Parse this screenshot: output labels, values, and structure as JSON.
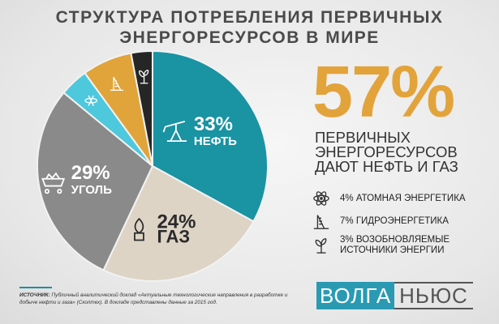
{
  "title_line1": "СТРУКТУРА ПОТРЕБЛЕНИЯ ПЕРВИЧНЫХ",
  "title_line2": "ЭНЕРГОРЕСУРСОВ В МИРЕ",
  "headline_value": "57%",
  "headline_text": [
    "ПЕРВИЧНЫХ",
    "ЭНЕРГОРЕСУРСОВ",
    "ДАЮТ НЕФТЬ И ГАЗ"
  ],
  "legend": [
    {
      "icon": "atom-icon",
      "text": "4% АТОМНАЯ ЭНЕРГЕТИКА"
    },
    {
      "icon": "hydro-dam-icon",
      "text": "7% ГИДРОЭНЕРГЕТИКА"
    },
    {
      "icon": "renewable-plant-icon",
      "line1": "3% ВОЗОБНОВЛЯЕМЫЕ",
      "line2": "ИСТОЧНИКИ ЭНЕРГИИ"
    }
  ],
  "source_label": "ИСТОЧНИК:",
  "source_text": "Публичный аналитический доклад «Актуальные технологические направления в разработке и добыче нефти и газа» (Сколтех). В докладе представлены данные за 2015 год.",
  "logo": {
    "part1": "ВОЛГА",
    "part2": "НЬЮС"
  },
  "colors": {
    "oil": "#1a93a3",
    "gas": "#ddd4c6",
    "coal": "#8a8a8a",
    "nuclear": "#4ec8dc",
    "hydro": "#e0a43a",
    "renewable": "#262626",
    "accent": "#e3a33b"
  },
  "chart_data": {
    "type": "pie",
    "categories": [
      "НЕФТЬ",
      "ГАЗ",
      "УГОЛЬ",
      "АТОМНАЯ ЭНЕРГЕТИКА",
      "ГИДРОЭНЕРГЕТИКА",
      "ВОЗОБНОВЛЯЕМЫЕ ИСТОЧНИКИ ЭНЕРГИИ"
    ],
    "values": [
      33,
      24,
      29,
      4,
      7,
      3
    ],
    "labels": [
      {
        "pct": "33%",
        "name": "НЕФТЬ",
        "icon": "oil-pump-icon"
      },
      {
        "pct": "24%",
        "name": "ГАЗ",
        "icon": "gas-flame-icon"
      },
      {
        "pct": "29%",
        "name": "УГОЛЬ",
        "icon": "coal-cart-icon"
      },
      {
        "pct": "",
        "name": "",
        "icon": "atom-icon"
      },
      {
        "pct": "",
        "name": "",
        "icon": "hydro-dam-icon"
      },
      {
        "pct": "",
        "name": "",
        "icon": "renewable-plant-icon"
      }
    ],
    "colors": [
      "#1a93a3",
      "#ddd4c6",
      "#8a8a8a",
      "#4ec8dc",
      "#e0a43a",
      "#262626"
    ],
    "label_colors": [
      "#ffffff",
      "#2a2a2a",
      "#ffffff",
      "",
      "",
      ""
    ]
  }
}
